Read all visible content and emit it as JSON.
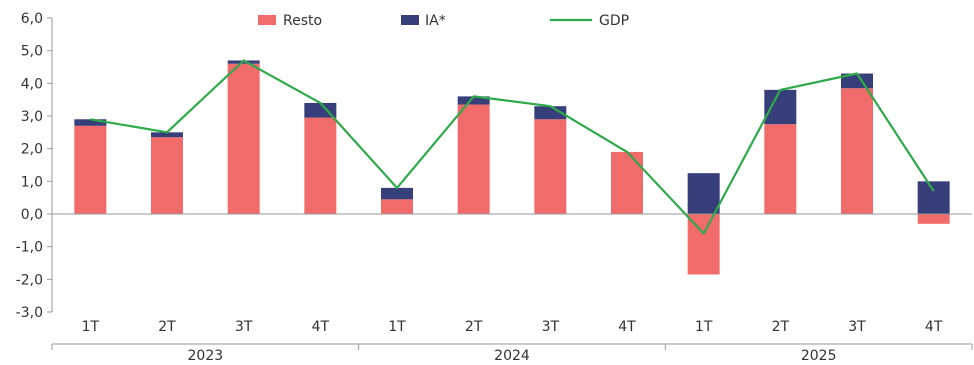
{
  "chart_data": {
    "type": "bar",
    "stacked": true,
    "categories": [
      "1T",
      "2T",
      "3T",
      "4T",
      "1T",
      "2T",
      "3T",
      "4T",
      "1T",
      "2T",
      "3T",
      "4T"
    ],
    "groups": [
      {
        "label": "2023",
        "categories": [
          "1T",
          "2T",
          "3T",
          "4T"
        ]
      },
      {
        "label": "2024",
        "categories": [
          "1T",
          "2T",
          "3T",
          "4T"
        ]
      },
      {
        "label": "2025",
        "categories": [
          "1T",
          "2T",
          "3T",
          "4T"
        ]
      }
    ],
    "series": [
      {
        "name": "Resto",
        "color": "#f26b6b",
        "kind": "bar",
        "values": [
          2.7,
          2.35,
          4.6,
          2.95,
          0.45,
          3.35,
          2.9,
          1.9,
          -1.85,
          2.75,
          3.85,
          -0.3
        ]
      },
      {
        "name": "IA*",
        "color": "#363f7a",
        "kind": "bar",
        "values": [
          0.2,
          0.15,
          0.1,
          0.45,
          0.35,
          0.25,
          0.4,
          0.0,
          1.25,
          1.05,
          0.45,
          1.0
        ]
      },
      {
        "name": "GDP",
        "color": "#2eaa4a",
        "kind": "line",
        "values": [
          2.9,
          2.5,
          4.7,
          3.4,
          0.8,
          3.6,
          3.3,
          1.9,
          -0.6,
          3.8,
          4.3,
          0.7
        ]
      }
    ],
    "y_ticks": [
      "6,0",
      "5,0",
      "4,0",
      "3,0",
      "2,0",
      "1,0",
      "0,0",
      "-1,0",
      "-2,0",
      "-3,0"
    ],
    "ylim": [
      -3,
      6
    ],
    "legend": {
      "position": "top",
      "items": [
        "Resto",
        "IA*",
        "GDP"
      ]
    },
    "grid": false
  }
}
